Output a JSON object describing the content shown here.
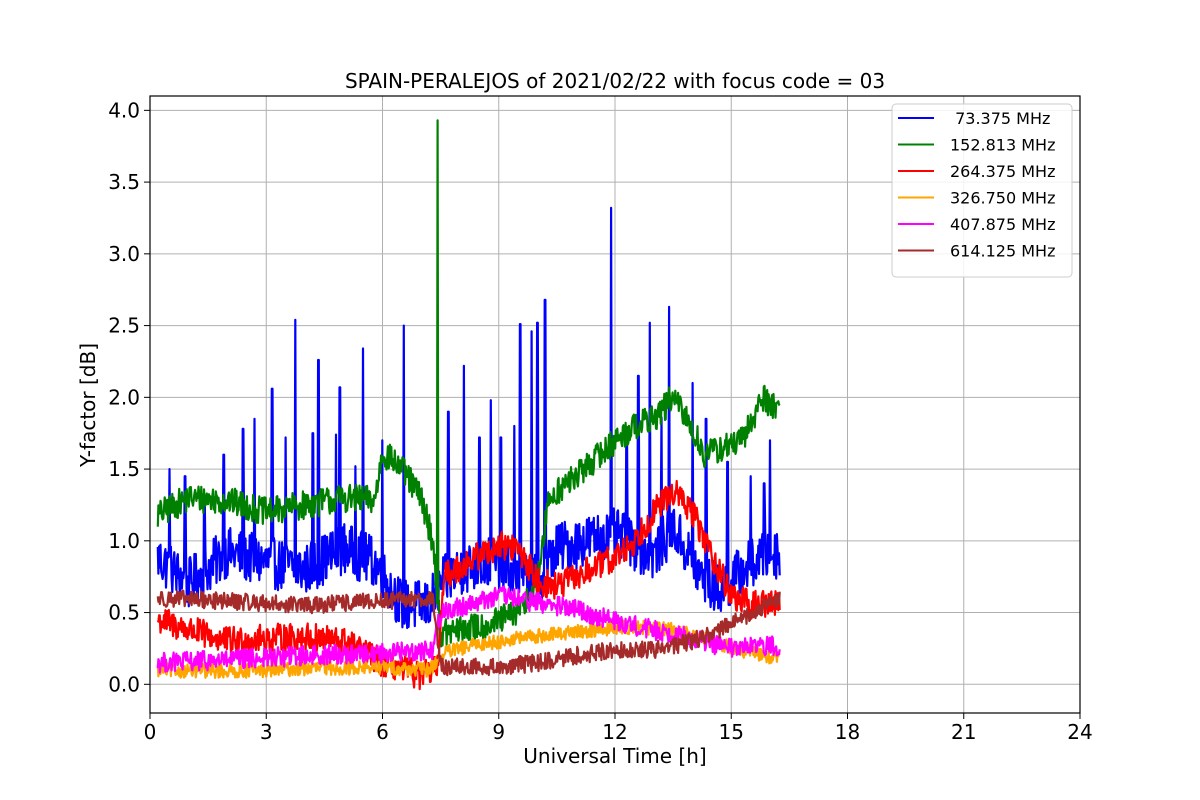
{
  "chart_data": {
    "type": "line",
    "title": "SPAIN-PERALEJOS of 2021/02/22 with focus code = 03",
    "xlabel": "Universal Time [h]",
    "ylabel": "Y-factor [dB]",
    "xlim": [
      0,
      24
    ],
    "ylim": [
      -0.2,
      4.1
    ],
    "xticks": [
      "0",
      "3",
      "6",
      "9",
      "12",
      "15",
      "18",
      "21",
      "24"
    ],
    "yticks": [
      "0.0",
      "0.5",
      "1.0",
      "1.5",
      "2.0",
      "2.5",
      "3.0",
      "3.5",
      "4.0"
    ],
    "grid": true,
    "legend_position": "top-right",
    "series": [
      {
        "name": " 73.375 MHz",
        "color": "#0000ff",
        "base": [
          [
            0.2,
            0.88
          ],
          [
            1.0,
            0.7
          ],
          [
            2.0,
            0.92
          ],
          [
            3.0,
            0.85
          ],
          [
            4.0,
            0.8
          ],
          [
            5.0,
            0.95
          ],
          [
            5.8,
            0.85
          ],
          [
            6.5,
            0.55
          ],
          [
            7.2,
            0.55
          ],
          [
            7.5,
            0.7
          ],
          [
            8.0,
            0.8
          ],
          [
            8.8,
            0.85
          ],
          [
            9.3,
            0.78
          ],
          [
            10.0,
            0.72
          ],
          [
            10.5,
            0.95
          ],
          [
            11.2,
            1.0
          ],
          [
            12.0,
            1.05
          ],
          [
            12.6,
            0.95
          ],
          [
            13.0,
            0.9
          ],
          [
            13.5,
            1.1
          ],
          [
            14.2,
            0.75
          ],
          [
            14.7,
            0.65
          ],
          [
            15.3,
            0.8
          ],
          [
            15.9,
            0.9
          ],
          [
            16.25,
            0.92
          ]
        ],
        "noise": 0.18,
        "spikes": [
          [
            0.5,
            1.5
          ],
          [
            0.9,
            1.45
          ],
          [
            1.4,
            1.3
          ],
          [
            1.9,
            1.6
          ],
          [
            2.4,
            1.78
          ],
          [
            2.7,
            1.85
          ],
          [
            3.15,
            2.06
          ],
          [
            3.5,
            1.72
          ],
          [
            3.75,
            2.54
          ],
          [
            4.2,
            1.75
          ],
          [
            4.35,
            2.26
          ],
          [
            4.8,
            1.74
          ],
          [
            4.9,
            2.07
          ],
          [
            5.3,
            1.52
          ],
          [
            5.5,
            2.34
          ],
          [
            6.0,
            1.7
          ],
          [
            6.55,
            2.5
          ],
          [
            7.7,
            1.9
          ],
          [
            8.1,
            2.22
          ],
          [
            8.5,
            1.72
          ],
          [
            8.8,
            1.98
          ],
          [
            9.05,
            1.72
          ],
          [
            9.4,
            1.8
          ],
          [
            9.55,
            2.51
          ],
          [
            9.85,
            2.46
          ],
          [
            10.0,
            2.52
          ],
          [
            10.2,
            2.68
          ],
          [
            11.9,
            3.32
          ],
          [
            12.3,
            1.75
          ],
          [
            12.6,
            2.15
          ],
          [
            12.9,
            2.52
          ],
          [
            13.2,
            1.86
          ],
          [
            13.4,
            2.63
          ],
          [
            14.0,
            2.1
          ],
          [
            14.35,
            1.85
          ],
          [
            14.9,
            1.55
          ],
          [
            15.5,
            1.45
          ],
          [
            15.85,
            1.4
          ],
          [
            16.0,
            1.7
          ]
        ]
      },
      {
        "name": "152.813 MHz",
        "color": "#008000",
        "base": [
          [
            0.2,
            1.18
          ],
          [
            1.0,
            1.3
          ],
          [
            2.0,
            1.28
          ],
          [
            3.0,
            1.2
          ],
          [
            4.0,
            1.25
          ],
          [
            5.0,
            1.3
          ],
          [
            5.8,
            1.28
          ],
          [
            6.0,
            1.62
          ],
          [
            6.5,
            1.5
          ],
          [
            7.0,
            1.3
          ],
          [
            7.3,
            1.0
          ],
          [
            7.5,
            0.35
          ],
          [
            8.0,
            0.38
          ],
          [
            8.8,
            0.42
          ],
          [
            9.5,
            0.5
          ],
          [
            10.0,
            0.72
          ],
          [
            10.3,
            1.3
          ],
          [
            11.0,
            1.45
          ],
          [
            11.8,
            1.65
          ],
          [
            12.5,
            1.8
          ],
          [
            13.0,
            1.85
          ],
          [
            13.5,
            2.0
          ],
          [
            14.0,
            1.78
          ],
          [
            14.3,
            1.6
          ],
          [
            14.8,
            1.65
          ],
          [
            15.3,
            1.7
          ],
          [
            15.8,
            2.0
          ],
          [
            16.25,
            1.92
          ]
        ],
        "noise": 0.1,
        "spikes": [
          [
            7.42,
            3.93
          ]
        ]
      },
      {
        "name": "264.375 MHz",
        "color": "#ff0000",
        "base": [
          [
            0.2,
            0.45
          ],
          [
            1.0,
            0.38
          ],
          [
            2.0,
            0.3
          ],
          [
            3.0,
            0.32
          ],
          [
            4.0,
            0.33
          ],
          [
            5.0,
            0.3
          ],
          [
            6.0,
            0.15
          ],
          [
            7.0,
            0.06
          ],
          [
            7.4,
            0.1
          ],
          [
            7.6,
            0.75
          ],
          [
            8.5,
            0.9
          ],
          [
            9.0,
            0.97
          ],
          [
            9.5,
            0.95
          ],
          [
            10.0,
            0.72
          ],
          [
            10.5,
            0.68
          ],
          [
            11.0,
            0.75
          ],
          [
            12.0,
            0.88
          ],
          [
            12.5,
            1.0
          ],
          [
            13.0,
            1.2
          ],
          [
            13.5,
            1.35
          ],
          [
            14.0,
            1.2
          ],
          [
            14.5,
            0.9
          ],
          [
            15.0,
            0.62
          ],
          [
            15.5,
            0.55
          ],
          [
            16.25,
            0.58
          ]
        ],
        "noise": 0.1,
        "spikes": []
      },
      {
        "name": "326.750 MHz",
        "color": "#ffa500",
        "base": [
          [
            0.2,
            0.1
          ],
          [
            2.0,
            0.09
          ],
          [
            4.0,
            0.11
          ],
          [
            6.0,
            0.12
          ],
          [
            7.2,
            0.1
          ],
          [
            7.6,
            0.22
          ],
          [
            8.5,
            0.28
          ],
          [
            9.5,
            0.32
          ],
          [
            10.5,
            0.35
          ],
          [
            11.5,
            0.38
          ],
          [
            12.5,
            0.4
          ],
          [
            13.5,
            0.38
          ],
          [
            14.5,
            0.3
          ],
          [
            15.5,
            0.22
          ],
          [
            16.25,
            0.18
          ]
        ],
        "noise": 0.05,
        "spikes": []
      },
      {
        "name": "407.875 MHz",
        "color": "#ff00ff",
        "base": [
          [
            0.2,
            0.15
          ],
          [
            2.0,
            0.17
          ],
          [
            4.0,
            0.2
          ],
          [
            6.0,
            0.22
          ],
          [
            7.3,
            0.24
          ],
          [
            7.5,
            0.5
          ],
          [
            8.5,
            0.58
          ],
          [
            9.0,
            0.62
          ],
          [
            10.0,
            0.57
          ],
          [
            11.0,
            0.52
          ],
          [
            12.0,
            0.44
          ],
          [
            13.0,
            0.38
          ],
          [
            14.0,
            0.32
          ],
          [
            15.0,
            0.25
          ],
          [
            16.25,
            0.27
          ]
        ],
        "noise": 0.07,
        "spikes": []
      },
      {
        "name": "614.125 MHz",
        "color": "#a52a2a",
        "base": [
          [
            0.2,
            0.6
          ],
          [
            2.0,
            0.58
          ],
          [
            4.0,
            0.55
          ],
          [
            6.0,
            0.58
          ],
          [
            7.3,
            0.6
          ],
          [
            7.5,
            0.12
          ],
          [
            9.0,
            0.12
          ],
          [
            10.0,
            0.15
          ],
          [
            11.0,
            0.2
          ],
          [
            12.0,
            0.24
          ],
          [
            13.0,
            0.24
          ],
          [
            14.0,
            0.3
          ],
          [
            15.0,
            0.42
          ],
          [
            15.6,
            0.5
          ],
          [
            16.25,
            0.6
          ]
        ],
        "noise": 0.06,
        "spikes": []
      }
    ]
  }
}
